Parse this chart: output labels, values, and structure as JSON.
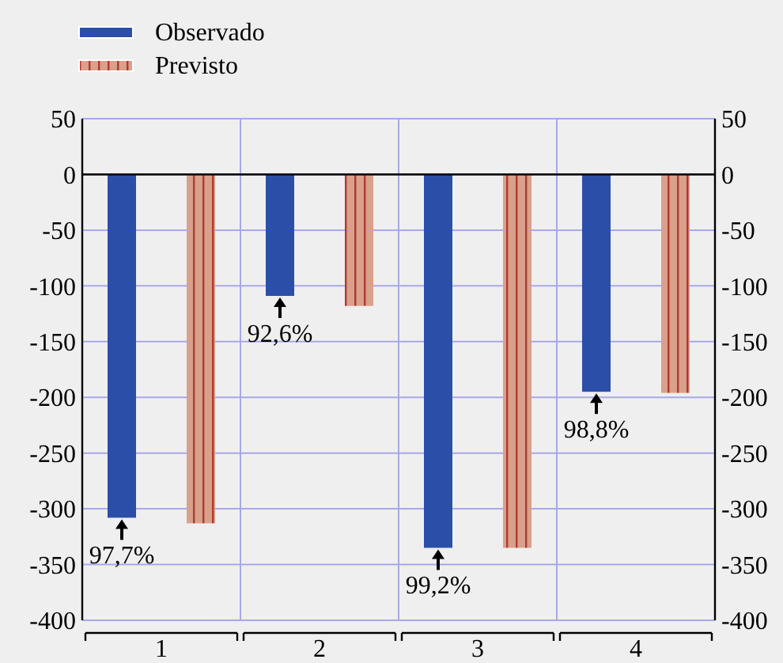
{
  "chart_data": {
    "type": "bar",
    "categories": [
      "1",
      "2",
      "3",
      "4"
    ],
    "series": [
      {
        "name": "Observado",
        "color": "#2b4fa8",
        "values": [
          -308,
          -109,
          -335,
          -195
        ]
      },
      {
        "name": "Previsto",
        "color": "#d9a08c",
        "values": [
          -313,
          -118,
          -335,
          -196
        ]
      }
    ],
    "ylim": [
      -400,
      50
    ],
    "yticks": [
      -400,
      -350,
      -300,
      -250,
      -200,
      -150,
      -100,
      -50,
      0,
      50
    ],
    "y2lim": [
      -400,
      50
    ],
    "y2ticks": [
      -400,
      -350,
      -300,
      -250,
      -200,
      -150,
      -100,
      -50,
      0,
      50
    ],
    "annotations": [
      "97,7%",
      "92,6%",
      "99,2%",
      "98,8%"
    ],
    "grid": true,
    "legend": "top left"
  }
}
